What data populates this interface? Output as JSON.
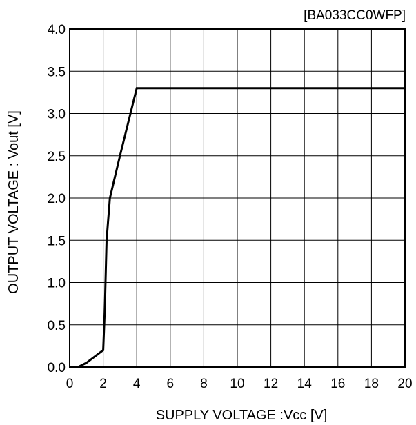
{
  "chart_data": {
    "type": "line",
    "title": "[BA033CC0WFP]",
    "xlabel": "SUPPLY VOLTAGE :Vcc [V]",
    "ylabel": "OUTPUT VOLTAGE : Vout [V]",
    "xlim": [
      0,
      20
    ],
    "ylim": [
      0.0,
      4.0
    ],
    "x_ticks": [
      0,
      2,
      4,
      6,
      8,
      10,
      12,
      14,
      16,
      18,
      20
    ],
    "x_tick_labels": [
      "0",
      "2",
      "4",
      "6",
      "8",
      "10",
      "12",
      "14",
      "16",
      "18",
      "20"
    ],
    "y_ticks": [
      0.0,
      0.5,
      1.0,
      1.5,
      2.0,
      2.5,
      3.0,
      3.5,
      4.0
    ],
    "y_tick_labels": [
      "0.0",
      "0.5",
      "1.0",
      "1.5",
      "2.0",
      "2.5",
      "3.0",
      "3.5",
      "4.0"
    ],
    "grid": true,
    "legend": false,
    "series": [
      {
        "x": [
          0,
          0.5,
          1.0,
          2.0,
          2.1,
          2.2,
          2.4,
          3.0,
          4.0,
          20.0
        ],
        "y": [
          0.0,
          0.0,
          0.05,
          0.2,
          0.7,
          1.5,
          2.0,
          2.5,
          3.3,
          3.3
        ]
      }
    ],
    "colors": {
      "line": "#000000",
      "grid": "#000000",
      "background": "#ffffff"
    }
  }
}
